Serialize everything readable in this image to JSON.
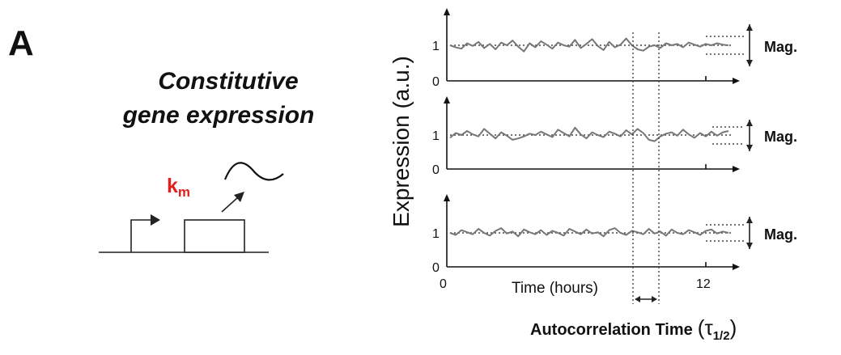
{
  "panel_label": "A",
  "title": {
    "line1": "Constitutive",
    "line2": "gene expression"
  },
  "rate_label": {
    "main": "k",
    "subscript": "m"
  },
  "colors": {
    "rate": "#e0201b",
    "trace": "#777777",
    "axis": "#111111"
  },
  "y_axis_label": "Expression (a.u.)",
  "x_axis_label": "Time (hours)",
  "x_ticks": [
    "0",
    "12"
  ],
  "y_ticks": [
    "0",
    "1"
  ],
  "magnitude_label": "Mag.",
  "autocorrelation_label": {
    "text": "Autocorrelation Time",
    "symbol": "(τ",
    "subscript": "1/2",
    "close": ")"
  },
  "chart_data": {
    "type": "line",
    "x_range_hours": [
      0,
      12
    ],
    "ylim": [
      0,
      1.5
    ],
    "mean_level": 1,
    "series": [
      {
        "values": [
          1.0,
          0.94,
          0.9,
          1.06,
          0.98,
          1.1,
          0.92,
          1.04,
          0.88,
          1.08,
          1.0,
          1.14,
          0.96,
          0.82,
          1.06,
          0.94,
          1.12,
          1.02,
          0.9,
          1.08,
          1.0,
          0.96,
          1.16,
          0.92,
          1.04,
          1.18,
          0.98,
          0.86,
          1.1,
          0.94,
          1.02,
          1.2,
          1.0,
          0.88,
          0.84,
          0.96,
          1.0,
          0.92,
          1.06,
          1.0,
          1.04,
          0.94,
          1.08,
          1.02,
          0.96,
          1.04,
          1.0,
          1.06,
          1.02,
          1.0
        ]
      },
      {
        "values": [
          0.92,
          1.06,
          1.0,
          1.12,
          1.02,
          0.96,
          1.18,
          1.04,
          0.9,
          1.08,
          0.98,
          0.86,
          0.9,
          0.96,
          1.04,
          1.0,
          1.1,
          1.02,
          0.94,
          1.16,
          1.06,
          0.96,
          1.22,
          1.02,
          0.9,
          1.08,
          1.0,
          0.94,
          1.1,
          1.04,
          0.96,
          1.14,
          1.02,
          1.18,
          1.06,
          0.86,
          0.82,
          0.96,
          1.04,
          1.08,
          0.98,
          1.16,
          1.02,
          0.92,
          1.06,
          0.96,
          1.1,
          0.98,
          1.08,
          1.12
        ]
      },
      {
        "values": [
          1.0,
          0.94,
          1.08,
          1.02,
          0.96,
          1.12,
          1.0,
          0.92,
          1.06,
          1.14,
          0.98,
          1.04,
          0.9,
          1.1,
          1.02,
          0.96,
          1.08,
          0.94,
          1.06,
          1.0,
          0.92,
          1.12,
          1.04,
          0.96,
          1.1,
          0.98,
          1.02,
          0.9,
          1.08,
          1.14,
          1.0,
          0.94,
          1.06,
          1.02,
          0.96,
          1.12,
          0.98,
          1.04,
          0.92,
          1.1,
          1.0,
          0.96,
          1.08,
          1.02,
          0.94,
          1.06,
          1.1,
          0.98,
          1.04,
          1.0
        ]
      }
    ]
  }
}
